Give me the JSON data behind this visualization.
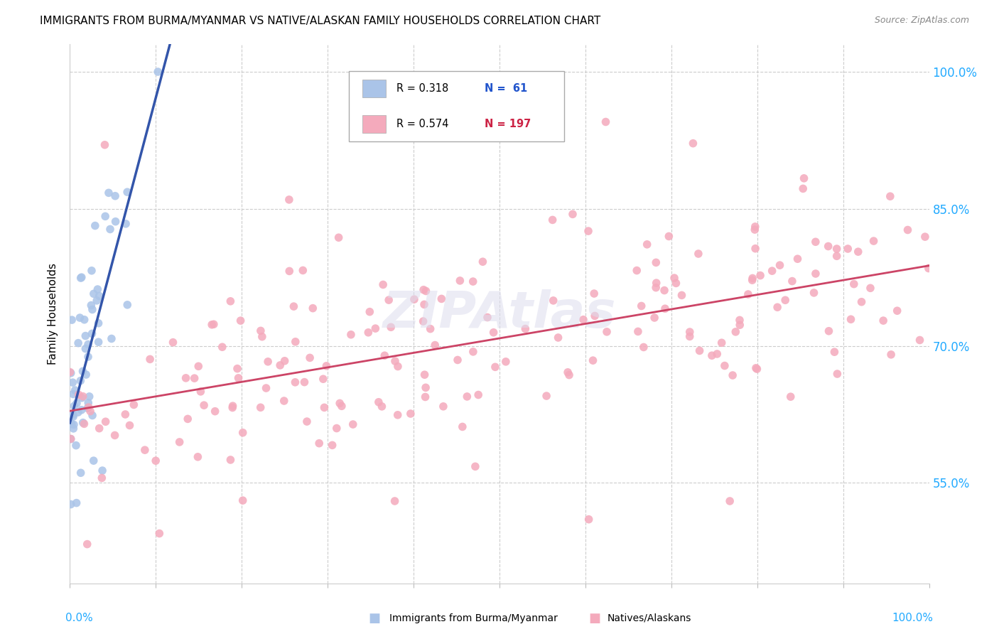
{
  "title": "IMMIGRANTS FROM BURMA/MYANMAR VS NATIVE/ALASKAN FAMILY HOUSEHOLDS CORRELATION CHART",
  "source": "Source: ZipAtlas.com",
  "ylabel": "Family Households",
  "ytick_vals": [
    0.55,
    0.7,
    0.85,
    1.0
  ],
  "ytick_labels": [
    "55.0%",
    "70.0%",
    "85.0%",
    "100.0%"
  ],
  "legend_r1": "R = 0.318",
  "legend_n1": "N =  61",
  "legend_r2": "R = 0.574",
  "legend_n2": "N = 197",
  "blue_color": "#aac4e8",
  "pink_color": "#f4aabc",
  "blue_line_color": "#3355aa",
  "pink_line_color": "#cc4466",
  "dashed_line_color": "#aaccee",
  "watermark": "ZIPAtlas",
  "xlim": [
    0.0,
    1.0
  ],
  "ylim": [
    0.44,
    1.03
  ]
}
